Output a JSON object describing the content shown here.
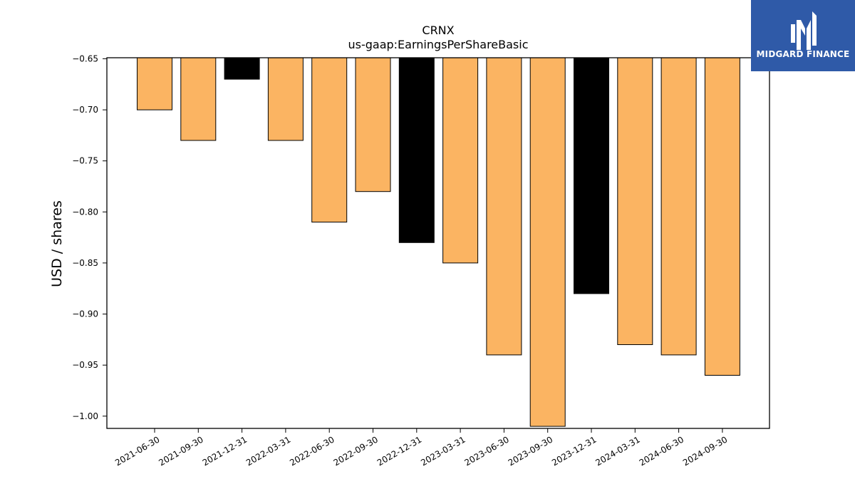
{
  "chart_data": {
    "type": "bar",
    "title": "CRNX",
    "subtitle": "us-gaap:EarningsPerShareBasic",
    "xlabel": "",
    "ylabel": "USD / shares",
    "categories": [
      "2021-06-30",
      "2021-09-30",
      "2021-12-31",
      "2022-03-31",
      "2022-06-30",
      "2022-09-30",
      "2022-12-31",
      "2023-03-31",
      "2023-06-30",
      "2023-09-30",
      "2023-12-31",
      "2024-03-31",
      "2024-06-30",
      "2024-09-30"
    ],
    "values": [
      -0.7,
      -0.73,
      -0.67,
      -0.73,
      -0.81,
      -0.78,
      -0.83,
      -0.85,
      -0.94,
      -1.01,
      -0.88,
      -0.93,
      -0.94,
      -0.96
    ],
    "bar_colors": [
      "#fbb462",
      "#fbb462",
      "#000000",
      "#fbb462",
      "#fbb462",
      "#fbb462",
      "#000000",
      "#fbb462",
      "#fbb462",
      "#fbb462",
      "#000000",
      "#fbb462",
      "#fbb462",
      "#fbb462"
    ],
    "ylim": [
      -1.012,
      -0.649
    ],
    "yticks": [
      -0.65,
      -0.7,
      -0.75,
      -0.8,
      -0.85,
      -0.9,
      -0.95,
      -1.0
    ],
    "ytick_labels": [
      "−0.65",
      "−0.70",
      "−0.75",
      "−0.80",
      "−0.85",
      "−0.90",
      "−0.95",
      "−1.00"
    ],
    "baseline": -0.649,
    "grid": false,
    "legend": "none"
  },
  "logo": {
    "text": "MIDGARD FINANCE",
    "background": "#2f5aa8"
  }
}
